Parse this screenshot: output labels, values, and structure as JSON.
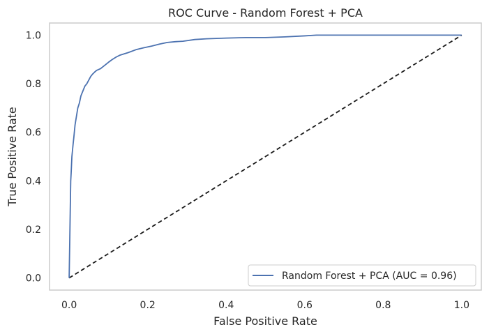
{
  "chart_data": {
    "type": "line",
    "title": "ROC Curve - Random Forest + PCA",
    "xlabel": "False Positive Rate",
    "ylabel": "True Positive Rate",
    "xlim": [
      -0.05,
      1.05
    ],
    "ylim": [
      -0.05,
      1.05
    ],
    "xticks": [
      "0.0",
      "0.2",
      "0.4",
      "0.6",
      "0.8",
      "1.0"
    ],
    "yticks": [
      "0.0",
      "0.2",
      "0.4",
      "0.6",
      "0.8",
      "1.0"
    ],
    "grid": false,
    "legend_position": "lower-right",
    "series": [
      {
        "name": "Random Forest + PCA (AUC = 0.96)",
        "color": "#4c72b0",
        "style": "solid",
        "x": [
          0.0,
          0.002,
          0.003,
          0.004,
          0.005,
          0.007,
          0.01,
          0.012,
          0.015,
          0.018,
          0.022,
          0.026,
          0.03,
          0.035,
          0.04,
          0.045,
          0.05,
          0.055,
          0.06,
          0.065,
          0.07,
          0.08,
          0.09,
          0.1,
          0.11,
          0.12,
          0.13,
          0.15,
          0.17,
          0.19,
          0.21,
          0.23,
          0.25,
          0.27,
          0.29,
          0.32,
          0.35,
          0.4,
          0.45,
          0.5,
          0.55,
          0.6,
          0.63,
          0.7,
          0.8,
          0.9,
          1.0
        ],
        "y": [
          0.0,
          0.2,
          0.3,
          0.4,
          0.43,
          0.5,
          0.55,
          0.58,
          0.63,
          0.66,
          0.7,
          0.72,
          0.75,
          0.77,
          0.79,
          0.8,
          0.815,
          0.83,
          0.84,
          0.848,
          0.855,
          0.862,
          0.875,
          0.888,
          0.9,
          0.91,
          0.918,
          0.928,
          0.94,
          0.948,
          0.955,
          0.963,
          0.97,
          0.973,
          0.975,
          0.982,
          0.985,
          0.988,
          0.99,
          0.99,
          0.993,
          0.997,
          1.0,
          1.0,
          1.0,
          1.0,
          1.0
        ]
      },
      {
        "name": "",
        "color": "#1a1a1a",
        "style": "dashed",
        "x": [
          0.0,
          1.0
        ],
        "y": [
          0.0,
          1.0
        ]
      }
    ]
  }
}
